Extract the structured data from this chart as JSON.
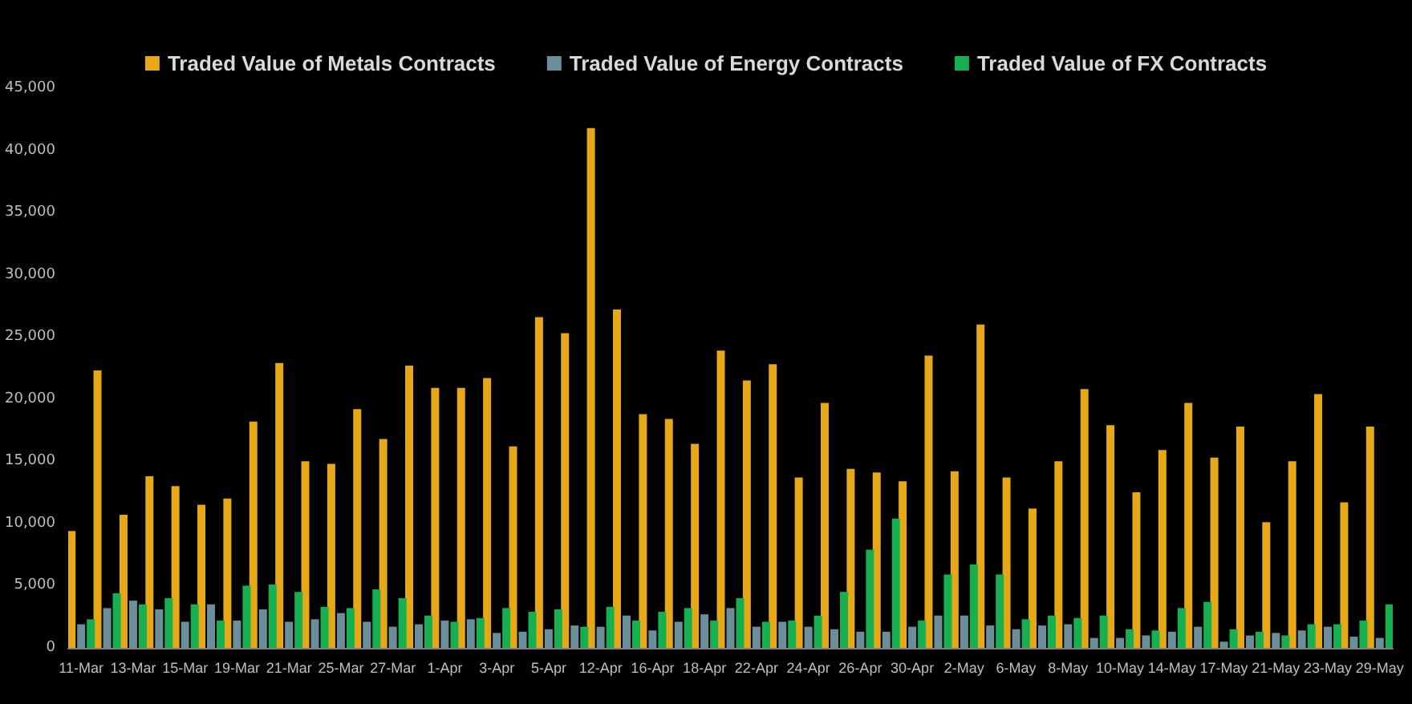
{
  "chart_data": {
    "type": "bar",
    "categories": [
      "11-Mar",
      null,
      "13-Mar",
      null,
      "15-Mar",
      null,
      "19-Mar",
      null,
      "21-Mar",
      null,
      "25-Mar",
      null,
      "27-Mar",
      null,
      "1-Apr",
      null,
      "3-Apr",
      null,
      "5-Apr",
      null,
      "12-Apr",
      null,
      "16-Apr",
      null,
      "18-Apr",
      null,
      "22-Apr",
      null,
      "24-Apr",
      null,
      "26-Apr",
      null,
      "30-Apr",
      null,
      "2-May",
      null,
      "6-May",
      null,
      "8-May",
      null,
      "10-May",
      null,
      "14-May",
      null,
      "17-May",
      null,
      "21-May",
      null,
      "23-May",
      null,
      "29-May"
    ],
    "series": [
      {
        "name": "Traded Value of Metals Contracts",
        "color": "#e6a817",
        "values": [
          9400,
          22300,
          10700,
          13800,
          13000,
          11500,
          12000,
          18200,
          22900,
          15000,
          14800,
          19200,
          16800,
          22700,
          20900,
          20900,
          21700,
          16200,
          26600,
          25300,
          41800,
          27200,
          18800,
          18400,
          16400,
          23900,
          21500,
          22800,
          13700,
          19700,
          14400,
          14100,
          13400,
          23500,
          14200,
          26000,
          13700,
          11200,
          15000,
          20800,
          17900,
          12500,
          15900,
          19700,
          15300,
          17800,
          10100,
          15000,
          20400,
          11700,
          17800
        ]
      },
      {
        "name": "Traded Value of Energy Contracts",
        "color": "#6b8e9b",
        "values": [
          1900,
          3200,
          3800,
          3100,
          2100,
          3500,
          2200,
          3100,
          2100,
          2300,
          2800,
          2100,
          1700,
          1900,
          2200,
          2300,
          1200,
          1300,
          1500,
          1800,
          1700,
          2600,
          1400,
          2100,
          2700,
          3200,
          1700,
          2100,
          1700,
          1500,
          1300,
          1300,
          1700,
          2600,
          2600,
          1800,
          1500,
          1800,
          1900,
          800,
          800,
          1000,
          1300,
          1700,
          500,
          1000,
          1200,
          1400,
          1700,
          900,
          800
        ]
      },
      {
        "name": "Traded Value of FX Contracts",
        "color": "#16b050",
        "values": [
          2300,
          4400,
          3500,
          4000,
          3500,
          2200,
          5000,
          5100,
          4500,
          3300,
          3200,
          4700,
          4000,
          2600,
          2100,
          2400,
          3200,
          2900,
          3100,
          1700,
          3300,
          2200,
          2900,
          3200,
          2200,
          4000,
          2100,
          2200,
          2600,
          4500,
          7900,
          10400,
          2200,
          5900,
          6700,
          5900,
          2300,
          2600,
          2400,
          2600,
          1500,
          1400,
          3200,
          3700,
          1500,
          1300,
          1000,
          1900,
          1900,
          2200,
          3500
        ]
      }
    ],
    "ylim": [
      0,
      45000
    ],
    "yticks": [
      0,
      {
        "value": 5000,
        "label": "5,000"
      },
      {
        "value": 10000,
        "label": "10,000"
      },
      {
        "value": 15000,
        "label": "15,000"
      },
      {
        "value": 20000,
        "label": "20,000"
      },
      {
        "value": 25000,
        "label": "25,000"
      },
      {
        "value": 30000,
        "label": "30,000"
      },
      {
        "value": 35000,
        "label": "35,000"
      },
      {
        "value": 40000,
        "label": "40,000"
      },
      {
        "value": 45000,
        "label": "45,000"
      }
    ],
    "grid": false,
    "legend": "top"
  }
}
